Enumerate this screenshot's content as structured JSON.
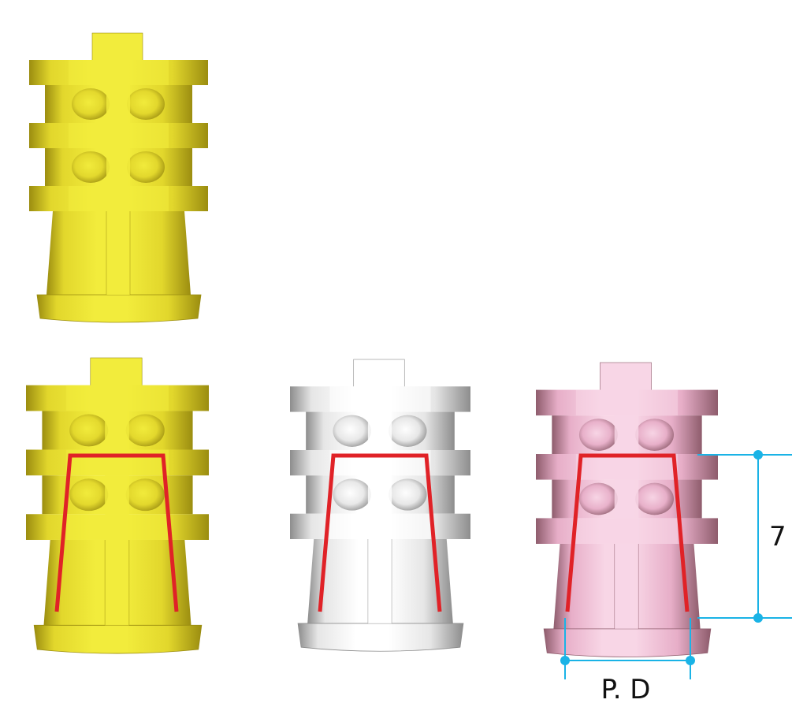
{
  "labels": {
    "height_value": "7",
    "diameter_label": "P. D"
  },
  "components": [
    {
      "name": "abutment-yellow-top",
      "color": "yellow",
      "taper_outline": false
    },
    {
      "name": "abutment-yellow",
      "color": "yellow",
      "taper_outline": true
    },
    {
      "name": "abutment-white",
      "color": "white",
      "taper_outline": true
    },
    {
      "name": "abutment-pink",
      "color": "pink",
      "taper_outline": true,
      "dimensioned": true
    }
  ],
  "colors": {
    "yellow_light": "#f2ec3c",
    "yellow_mid": "#e2d72c",
    "yellow_dark": "#9b8d10",
    "white_light": "#ffffff",
    "white_mid": "#e6e6e6",
    "white_dark": "#8d8d8d",
    "pink_light": "#f8d6e6",
    "pink_mid": "#e7aec8",
    "pink_dark": "#8e5c6c",
    "taper_outline": "#e02227",
    "dimension": "#1ab3e6"
  }
}
